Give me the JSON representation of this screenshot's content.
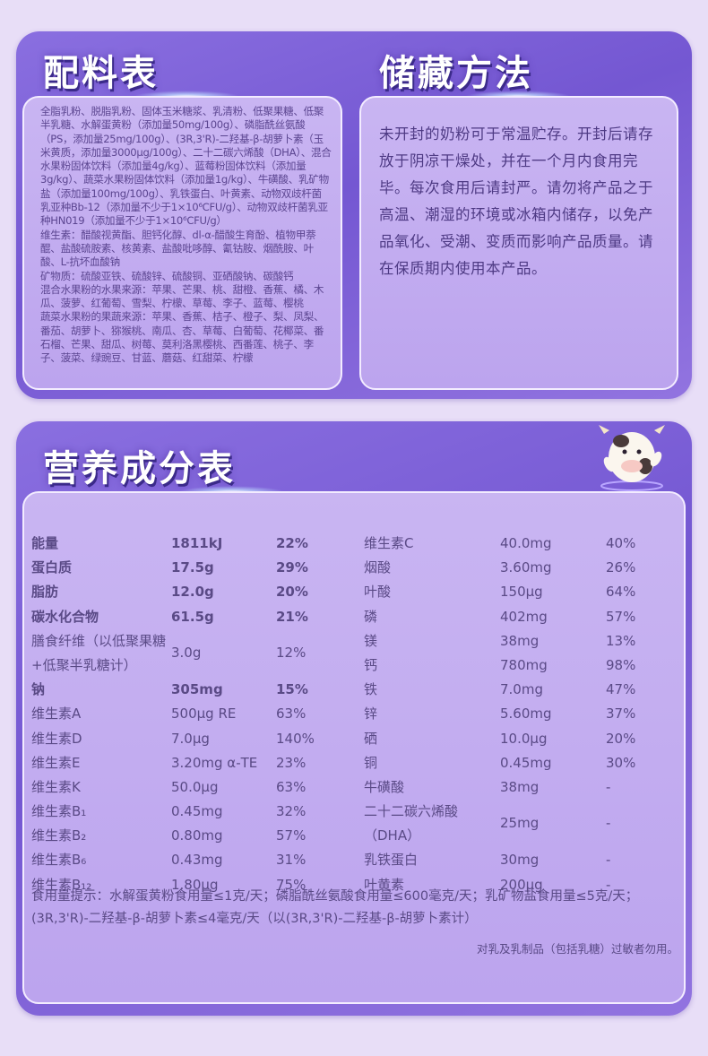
{
  "ingredients": {
    "title": "配料表",
    "paragraphs": [
      "全脂乳粉、脱脂乳粉、固体玉米糖浆、乳清粉、低聚果糖、低聚半乳糖、水解蛋黄粉（添加量50mg/100g）、磷脂酰丝氨酸（PS，添加量25mg/100g）、(3R,3'R)-二羟基-β-胡萝卜素（玉米黄质，添加量3000μg/100g）、二十二碳六烯酸（DHA）、混合水果粉固体饮料（添加量4g/kg）、蓝莓粉固体饮料（添加量3g/kg）、蔬菜水果粉固体饮料（添加量1g/kg）、牛磺酸、乳矿物盐（添加量100mg/100g）、乳铁蛋白、叶黄素、动物双歧杆菌乳亚种Bb-12（添加量不少于1×10⁶CFU/g）、动物双歧杆菌乳亚种HN019（添加量不少于1×10⁶CFU/g）",
      "维生素：醋酸视黄酯、胆钙化醇、dl-α-醋酸生育酚、植物甲萘醌、盐酸硫胺素、核黄素、盐酸吡哆醇、氰钴胺、烟酰胺、叶酸、L-抗坏血酸钠",
      "矿物质：硫酸亚铁、硫酸锌、硫酸铜、亚硒酸钠、碳酸钙",
      "混合水果粉的水果来源：苹果、芒果、桃、甜橙、香蕉、橘、木瓜、菠萝、红葡萄、雪梨、柠檬、草莓、李子、蓝莓、樱桃",
      "蔬菜水果粉的果蔬来源：苹果、香蕉、桔子、橙子、梨、凤梨、番茄、胡萝卜、猕猴桃、南瓜、杏、草莓、白葡萄、花椰菜、番石榴、芒果、甜瓜、树莓、莫利洛黑樱桃、西番莲、桃子、李子、菠菜、绿豌豆、甘蓝、蘑菇、红甜菜、柠檬"
    ]
  },
  "storage": {
    "title": "储藏方法",
    "text": "未开封的奶粉可于常温贮存。开封后请存放于阴凉干燥处，并在一个月内食用完毕。每次食用后请封严。请勿将产品之于高温、潮湿的环境或冰箱内储存，以免产品氧化、受潮、变质而影响产品质量。请在保质期内使用本产品。"
  },
  "nutrition": {
    "title": "营养成分表",
    "left": [
      {
        "name": "能量",
        "value": "1811kJ",
        "pct": "22%",
        "bold": true
      },
      {
        "name": "蛋白质",
        "value": "17.5g",
        "pct": "29%",
        "bold": true
      },
      {
        "name": "脂肪",
        "value": "12.0g",
        "pct": "20%",
        "bold": true
      },
      {
        "name": "碳水化合物",
        "value": "61.5g",
        "pct": "21%",
        "bold": true
      },
      {
        "name": "膳食纤维（以低聚果糖+低聚半乳糖计）",
        "value": "3.0g",
        "pct": "12%",
        "double": true
      },
      {
        "name": "钠",
        "value": "305mg",
        "pct": "15%",
        "bold": true
      },
      {
        "name": "维生素A",
        "value": "500μg RE",
        "pct": "63%"
      },
      {
        "name": "维生素D",
        "value": "7.0μg",
        "pct": "140%"
      },
      {
        "name": "维生素E",
        "value": "3.20mg α-TE",
        "pct": "23%"
      },
      {
        "name": "维生素K",
        "value": "50.0μg",
        "pct": "63%"
      },
      {
        "name": "维生素B₁",
        "value": "0.45mg",
        "pct": "32%"
      },
      {
        "name": "维生素B₂",
        "value": "0.80mg",
        "pct": "57%"
      },
      {
        "name": "维生素B₆",
        "value": "0.43mg",
        "pct": "31%"
      },
      {
        "name": "维生素B₁₂",
        "value": "1.80μg",
        "pct": "75%"
      }
    ],
    "right": [
      {
        "name": "维生素C",
        "value": "40.0mg",
        "pct": "40%"
      },
      {
        "name": "烟酸",
        "value": "3.60mg",
        "pct": "26%"
      },
      {
        "name": "叶酸",
        "value": "150μg",
        "pct": "64%"
      },
      {
        "name": "磷",
        "value": "402mg",
        "pct": "57%"
      },
      {
        "name": "镁",
        "value": "38mg",
        "pct": "13%"
      },
      {
        "name": "钙",
        "value": "780mg",
        "pct": "98%"
      },
      {
        "name": "铁",
        "value": "7.0mg",
        "pct": "47%"
      },
      {
        "name": "锌",
        "value": "5.60mg",
        "pct": "37%"
      },
      {
        "name": "硒",
        "value": "10.0μg",
        "pct": "20%"
      },
      {
        "name": "铜",
        "value": "0.45mg",
        "pct": "30%"
      },
      {
        "name": "牛磺酸",
        "value": "38mg",
        "pct": "-"
      },
      {
        "name": "二十二碳六烯酸（DHA）",
        "value": "25mg",
        "pct": "-",
        "double": true
      },
      {
        "name": "乳铁蛋白",
        "value": "30mg",
        "pct": "-"
      },
      {
        "name": "叶黄素",
        "value": "200μg",
        "pct": "-"
      }
    ],
    "note": "食用量提示：水解蛋黄粉食用量≤1克/天；磷脂酰丝氨酸食用量≤600毫克/天；乳矿物盐食用量≤5克/天；(3R,3'R)-二羟基-β-胡萝卜素≤4毫克/天（以(3R,3'R)-二羟基-β-胡萝卜素计）",
    "warning": "对乳及乳制品（包括乳糖）过敏者勿用。"
  },
  "colors": {
    "card": "#7a5fd6",
    "box": "#c4aef0",
    "text": "#5a4a86"
  }
}
